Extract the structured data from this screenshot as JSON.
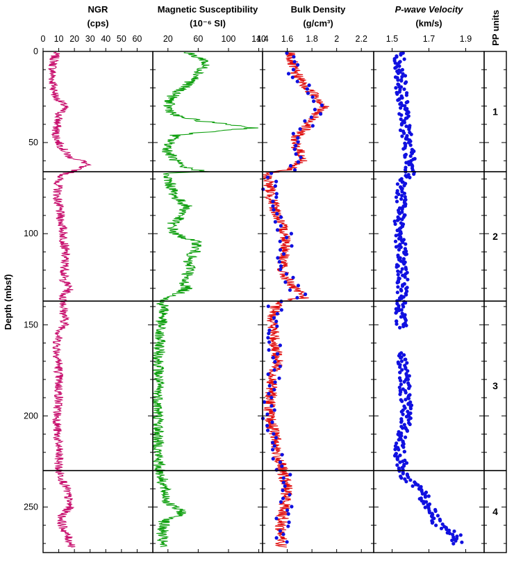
{
  "chart_data": {
    "type": "well-log",
    "y_axis": {
      "label": "Depth (mbsf)",
      "range": [
        0,
        275
      ],
      "ticks": [
        0,
        50,
        100,
        150,
        200,
        250
      ]
    },
    "tracks": [
      {
        "id": "ngr",
        "title": "NGR",
        "units": "(cps)",
        "range": [
          0,
          70
        ],
        "ticks": [
          0,
          10,
          20,
          30,
          40,
          50,
          60
        ],
        "tick_labels": [
          "0",
          "10",
          "20",
          "30",
          "40",
          "50",
          "60"
        ],
        "style": "line",
        "color": "#c8106e",
        "profile": [
          [
            0,
            8
          ],
          [
            5,
            7
          ],
          [
            10,
            6
          ],
          [
            15,
            6
          ],
          [
            20,
            7
          ],
          [
            25,
            8
          ],
          [
            30,
            14
          ],
          [
            35,
            10
          ],
          [
            40,
            9
          ],
          [
            45,
            8
          ],
          [
            50,
            10
          ],
          [
            55,
            14
          ],
          [
            58,
            17
          ],
          [
            60,
            25
          ],
          [
            62,
            28
          ],
          [
            64,
            22
          ],
          [
            66,
            20
          ],
          [
            67,
            14
          ],
          [
            70,
            10
          ],
          [
            80,
            9
          ],
          [
            90,
            11
          ],
          [
            100,
            13
          ],
          [
            110,
            14
          ],
          [
            120,
            14
          ],
          [
            125,
            13
          ],
          [
            130,
            17
          ],
          [
            135,
            12
          ],
          [
            137,
            14
          ],
          [
            140,
            13
          ],
          [
            150,
            14
          ],
          [
            155,
            10
          ],
          [
            160,
            9
          ],
          [
            165,
            9
          ],
          [
            170,
            10
          ],
          [
            180,
            10
          ],
          [
            190,
            10
          ],
          [
            200,
            9
          ],
          [
            210,
            9
          ],
          [
            220,
            10
          ],
          [
            228,
            10
          ],
          [
            230,
            10
          ],
          [
            240,
            15
          ],
          [
            250,
            17
          ],
          [
            255,
            12
          ],
          [
            260,
            12
          ],
          [
            272,
            19
          ]
        ],
        "noise": 3
      },
      {
        "id": "magsus",
        "title": "Magnetic Susceptibility",
        "units": "(10⁻⁶ SI)",
        "range": [
          0,
          145
        ],
        "ticks": [
          20,
          60,
          100,
          140
        ],
        "tick_labels": [
          "20",
          "60",
          "100",
          "140"
        ],
        "style": "line",
        "color": "#10a010",
        "profile": [
          [
            0,
            40
          ],
          [
            5,
            70
          ],
          [
            10,
            65
          ],
          [
            15,
            55
          ],
          [
            20,
            40
          ],
          [
            25,
            25
          ],
          [
            30,
            20
          ],
          [
            35,
            28
          ],
          [
            38,
            60
          ],
          [
            40,
            100
          ],
          [
            42,
            135
          ],
          [
            44,
            75
          ],
          [
            46,
            30
          ],
          [
            50,
            22
          ],
          [
            55,
            20
          ],
          [
            60,
            30
          ],
          [
            63,
            35
          ],
          [
            66,
            70
          ],
          [
            67,
            15
          ],
          [
            70,
            20
          ],
          [
            75,
            25
          ],
          [
            80,
            30
          ],
          [
            85,
            45
          ],
          [
            90,
            38
          ],
          [
            95,
            25
          ],
          [
            100,
            28
          ],
          [
            105,
            60
          ],
          [
            110,
            55
          ],
          [
            115,
            45
          ],
          [
            120,
            52
          ],
          [
            125,
            40
          ],
          [
            130,
            45
          ],
          [
            134,
            30
          ],
          [
            137,
            10
          ],
          [
            140,
            15
          ],
          [
            145,
            14
          ],
          [
            150,
            10
          ],
          [
            155,
            8
          ],
          [
            160,
            9
          ],
          [
            170,
            8
          ],
          [
            180,
            7
          ],
          [
            190,
            7
          ],
          [
            200,
            7
          ],
          [
            210,
            7
          ],
          [
            220,
            7
          ],
          [
            228,
            8
          ],
          [
            230,
            10
          ],
          [
            240,
            15
          ],
          [
            248,
            20
          ],
          [
            253,
            40
          ],
          [
            255,
            32
          ],
          [
            258,
            15
          ],
          [
            265,
            12
          ],
          [
            272,
            12
          ]
        ],
        "noise": 8
      },
      {
        "id": "density",
        "title": "Bulk Density",
        "units": "(g/cm³)",
        "range": [
          1.4,
          2.3
        ],
        "ticks": [
          1.4,
          1.6,
          1.8,
          2,
          2.2
        ],
        "tick_labels": [
          "1.4",
          "1.6",
          "1.8",
          "2",
          "2.2"
        ],
        "style": "line+points",
        "color": "#e01010",
        "point_color": "#1010e0",
        "profile": [
          [
            0,
            1.62
          ],
          [
            10,
            1.65
          ],
          [
            20,
            1.75
          ],
          [
            25,
            1.85
          ],
          [
            30,
            1.9
          ],
          [
            35,
            1.82
          ],
          [
            40,
            1.78
          ],
          [
            45,
            1.7
          ],
          [
            50,
            1.65
          ],
          [
            55,
            1.7
          ],
          [
            60,
            1.72
          ],
          [
            65,
            1.6
          ],
          [
            67,
            1.42
          ],
          [
            70,
            1.45
          ],
          [
            80,
            1.47
          ],
          [
            90,
            1.52
          ],
          [
            95,
            1.55
          ],
          [
            100,
            1.58
          ],
          [
            105,
            1.6
          ],
          [
            110,
            1.58
          ],
          [
            120,
            1.55
          ],
          [
            130,
            1.65
          ],
          [
            135,
            1.75
          ],
          [
            137,
            1.55
          ],
          [
            140,
            1.5
          ],
          [
            150,
            1.48
          ],
          [
            160,
            1.5
          ],
          [
            170,
            1.52
          ],
          [
            180,
            1.48
          ],
          [
            190,
            1.47
          ],
          [
            200,
            1.45
          ],
          [
            210,
            1.5
          ],
          [
            220,
            1.52
          ],
          [
            228,
            1.55
          ],
          [
            240,
            1.6
          ],
          [
            250,
            1.58
          ],
          [
            260,
            1.55
          ],
          [
            272,
            1.55
          ]
        ],
        "noise": 0.05
      },
      {
        "id": "pwave",
        "title": "P-wave Velocity",
        "units": "(km/s)",
        "range": [
          1.4,
          2.0
        ],
        "ticks": [
          1.5,
          1.7,
          1.9
        ],
        "tick_labels": [
          "1.5",
          "1.7",
          "1.9"
        ],
        "style": "points",
        "color": "#1010e0",
        "profile": [
          [
            0,
            1.54
          ],
          [
            20,
            1.55
          ],
          [
            40,
            1.57
          ],
          [
            60,
            1.6
          ],
          [
            67,
            1.6
          ],
          [
            70,
            1.56
          ],
          [
            90,
            1.54
          ],
          [
            110,
            1.55
          ],
          [
            130,
            1.56
          ],
          [
            137,
            1.55
          ],
          [
            140,
            1.55
          ],
          [
            160,
            1.55
          ],
          [
            170,
            1.56
          ],
          [
            200,
            1.58
          ],
          [
            220,
            1.54
          ],
          [
            235,
            1.57
          ],
          [
            240,
            1.65
          ],
          [
            250,
            1.7
          ],
          [
            260,
            1.75
          ],
          [
            265,
            1.85
          ]
        ],
        "noise": 0.03,
        "gaps": [
          [
            152,
            165
          ]
        ]
      }
    ],
    "pp_units": {
      "title": "PP units",
      "units": [
        {
          "label": "1",
          "top": 0,
          "bottom": 66
        },
        {
          "label": "2",
          "top": 66,
          "bottom": 137
        },
        {
          "label": "3",
          "top": 137,
          "bottom": 230
        },
        {
          "label": "4",
          "top": 230,
          "bottom": 275
        }
      ]
    }
  }
}
